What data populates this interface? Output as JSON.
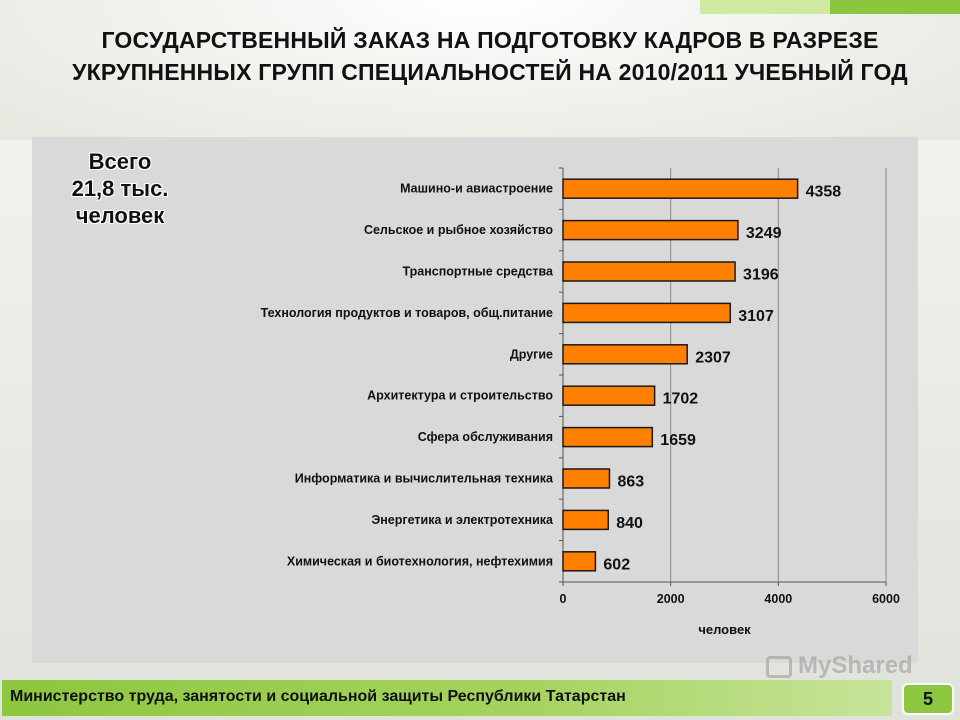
{
  "slide": {
    "title": "ГОСУДАРСТВЕННЫЙ ЗАКАЗ НА ПОДГОТОВКУ КАДРОВ В РАЗРЕЗЕ УКРУПНЕННЫХ ГРУПП СПЕЦИАЛЬНОСТЕЙ НА 2010/2011 УЧЕБНЫЙ ГОД",
    "total_line1": "Всего",
    "total_line2": "21,8 тыс.",
    "total_line3": "человек",
    "footer": "Министерство труда, занятости и социальной защиты Республики Татарстан",
    "page_number": "5",
    "watermark": "MyShared"
  },
  "colors": {
    "bar_fill": "#ff7f00",
    "bar_stroke": "#1a1a1a",
    "accent": "#8dc63f",
    "panel": "#d9d9d9"
  },
  "chart_data": {
    "type": "bar",
    "orientation": "horizontal",
    "categories": [
      "Машино-и авиастроение",
      "Сельское и рыбное хозяйство",
      "Транспортные средства",
      "Технология продуктов и товаров, общ.питание",
      "Другие",
      "Архитектура и строительство",
      "Сфера обслуживания",
      "Информатика и вычислительная техника",
      "Энергетика и электротехника",
      "Химическая и биотехнология, нефтехимия"
    ],
    "values": [
      4358,
      3249,
      3196,
      3107,
      2307,
      1702,
      1659,
      863,
      840,
      602
    ],
    "xlabel": "человек",
    "ylabel": "",
    "xlim": [
      0,
      6000
    ],
    "xticks": [
      0,
      2000,
      4000,
      6000
    ],
    "grid": "vertical",
    "data_labels": true
  }
}
